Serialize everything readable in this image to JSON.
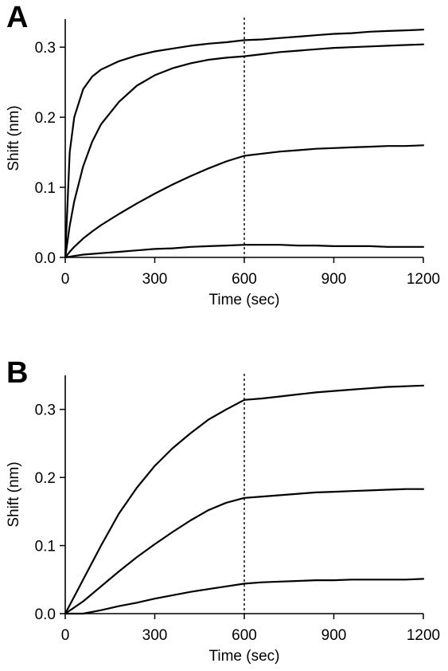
{
  "figure": {
    "panels": [
      "A",
      "B"
    ]
  },
  "chart_data": [
    {
      "panel": "A",
      "type": "line",
      "xlabel": "Time (sec)",
      "ylabel": "Shift (nm)",
      "xlim": [
        0,
        1200
      ],
      "ylim": [
        0,
        0.34
      ],
      "xticks": [
        0,
        300,
        600,
        900,
        1200
      ],
      "yticks": [
        0.0,
        0.1,
        0.2,
        0.3
      ],
      "ytick_labels": [
        "0.0",
        "0.1",
        "0.2",
        "0.3"
      ],
      "vline_x": 600,
      "vline_style": "dotted",
      "grid": false,
      "line_color": "#000000",
      "x": [
        0,
        15,
        30,
        60,
        90,
        120,
        180,
        240,
        300,
        360,
        420,
        480,
        540,
        600,
        660,
        720,
        780,
        840,
        900,
        960,
        1020,
        1080,
        1140,
        1200
      ],
      "series": [
        {
          "values": [
            0.0,
            0.15,
            0.2,
            0.24,
            0.258,
            0.268,
            0.28,
            0.288,
            0.294,
            0.298,
            0.302,
            0.305,
            0.307,
            0.31,
            0.311,
            0.313,
            0.315,
            0.317,
            0.319,
            0.32,
            0.322,
            0.323,
            0.324,
            0.325
          ]
        },
        {
          "values": [
            0.0,
            0.045,
            0.08,
            0.13,
            0.165,
            0.19,
            0.222,
            0.245,
            0.26,
            0.27,
            0.277,
            0.282,
            0.285,
            0.287,
            0.29,
            0.293,
            0.295,
            0.297,
            0.299,
            0.3,
            0.301,
            0.302,
            0.303,
            0.304
          ]
        },
        {
          "values": [
            0.0,
            0.008,
            0.015,
            0.027,
            0.037,
            0.046,
            0.062,
            0.077,
            0.091,
            0.104,
            0.116,
            0.127,
            0.137,
            0.145,
            0.148,
            0.151,
            0.153,
            0.155,
            0.156,
            0.157,
            0.158,
            0.159,
            0.159,
            0.16
          ]
        },
        {
          "values": [
            0.0,
            0.001,
            0.002,
            0.004,
            0.005,
            0.006,
            0.008,
            0.01,
            0.012,
            0.013,
            0.015,
            0.016,
            0.017,
            0.018,
            0.018,
            0.018,
            0.017,
            0.017,
            0.016,
            0.016,
            0.016,
            0.015,
            0.015,
            0.015
          ]
        }
      ]
    },
    {
      "panel": "B",
      "type": "line",
      "xlabel": "Time (sec)",
      "ylabel": "Shift (nm)",
      "xlim": [
        0,
        1200
      ],
      "ylim": [
        0,
        0.35
      ],
      "xticks": [
        0,
        300,
        600,
        900,
        1200
      ],
      "yticks": [
        0.0,
        0.1,
        0.2,
        0.3
      ],
      "ytick_labels": [
        "0.0",
        "0.1",
        "0.2",
        "0.3"
      ],
      "vline_x": 600,
      "vline_style": "dotted",
      "grid": false,
      "line_color": "#000000",
      "x": [
        0,
        30,
        60,
        120,
        180,
        240,
        300,
        360,
        420,
        480,
        540,
        600,
        660,
        720,
        780,
        840,
        900,
        960,
        1020,
        1080,
        1140,
        1200
      ],
      "series": [
        {
          "values": [
            0.0,
            0.025,
            0.05,
            0.1,
            0.147,
            0.185,
            0.217,
            0.243,
            0.265,
            0.285,
            0.3,
            0.314,
            0.316,
            0.319,
            0.322,
            0.325,
            0.327,
            0.329,
            0.331,
            0.333,
            0.334,
            0.335
          ]
        },
        {
          "values": [
            0.0,
            0.009,
            0.018,
            0.04,
            0.062,
            0.083,
            0.102,
            0.12,
            0.137,
            0.152,
            0.163,
            0.17,
            0.172,
            0.174,
            0.176,
            0.178,
            0.179,
            0.18,
            0.181,
            0.182,
            0.183,
            0.183
          ]
        },
        {
          "values": [
            0.0,
            0.0,
            0.0,
            0.005,
            0.011,
            0.016,
            0.022,
            0.027,
            0.032,
            0.036,
            0.04,
            0.044,
            0.046,
            0.047,
            0.048,
            0.049,
            0.049,
            0.05,
            0.05,
            0.05,
            0.05,
            0.051
          ]
        }
      ]
    }
  ]
}
